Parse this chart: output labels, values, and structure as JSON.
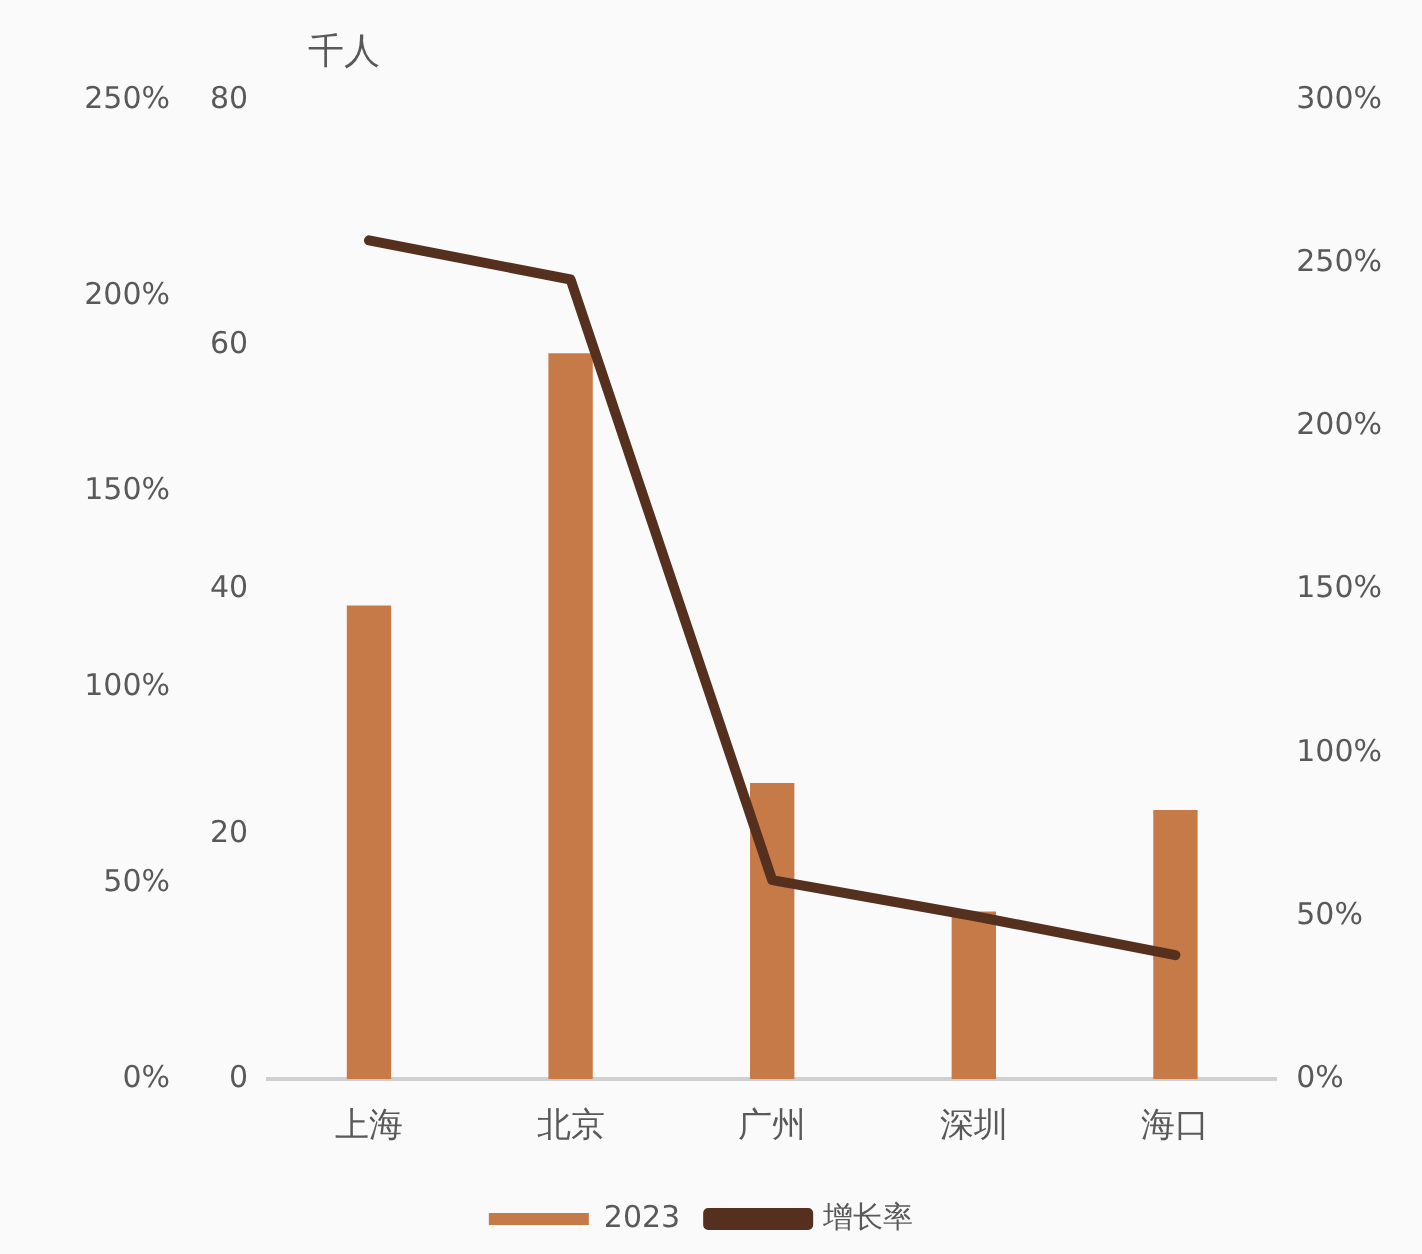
{
  "chart_data": {
    "type": "bar",
    "ylabel": "千人",
    "categories": [
      "上海",
      "北京",
      "广州",
      "深圳",
      "海口"
    ],
    "series": [
      {
        "name": "2023",
        "color": "#c67a48",
        "values": [
          38.7,
          59.3,
          24.2,
          13.7,
          22.0
        ]
      },
      {
        "name": "增长率",
        "type": "line",
        "axis": "y2",
        "color": "#56301f",
        "values": [
          257,
          245,
          61,
          50,
          38
        ]
      }
    ],
    "ylim": [
      0,
      80
    ],
    "yticks": [
      0,
      20,
      40,
      60,
      80
    ],
    "y2lim": [
      0,
      300
    ],
    "y2ticks": [
      {
        "value": 0,
        "label": "0%"
      },
      {
        "value": 50,
        "label": "50%"
      },
      {
        "value": 100,
        "label": "100%"
      },
      {
        "value": 150,
        "label": "150%"
      },
      {
        "value": 200,
        "label": "200%"
      },
      {
        "value": 250,
        "label": "250%"
      },
      {
        "value": 300,
        "label": "300%"
      }
    ],
    "y3lim": [
      0,
      250
    ],
    "y3ticks": [
      {
        "value": 0,
        "label": "0%"
      },
      {
        "value": 50,
        "label": "50%"
      },
      {
        "value": 100,
        "label": "100%"
      },
      {
        "value": 150,
        "label": "150%"
      },
      {
        "value": 200,
        "label": "200%"
      },
      {
        "value": 250,
        "label": "250%"
      }
    ],
    "grid": false,
    "legend": "bottom",
    "marker": "none",
    "line_style": "solid"
  }
}
